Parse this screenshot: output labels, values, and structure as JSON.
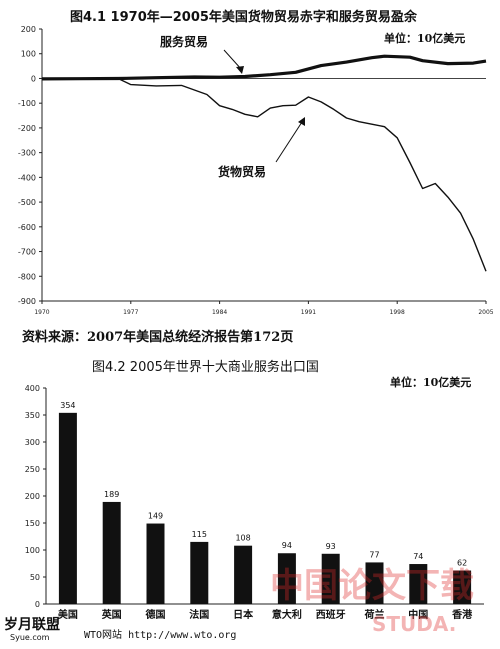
{
  "chart_data": [
    {
      "type": "line",
      "title": "图4.1  1970年—2005年美国货物贸易赤字和服务贸易盈余",
      "unit_label": "单位：10亿美元",
      "ylim": [
        -900,
        200
      ],
      "yticks": [
        200,
        100,
        0,
        -100,
        -200,
        -300,
        -400,
        -500,
        -600,
        -700,
        -800,
        -900
      ],
      "xlim": [
        1970,
        2005
      ],
      "xticks": [
        1970,
        1977,
        1984,
        1991,
        1998,
        2005
      ],
      "grid": false,
      "series": [
        {
          "name": "服务贸易",
          "x": [
            1970,
            1973,
            1976,
            1979,
            1982,
            1984,
            1986,
            1988,
            1990,
            1992,
            1994,
            1996,
            1997,
            1999,
            2000,
            2002,
            2004,
            2005
          ],
          "values": [
            -2,
            -1,
            0,
            3,
            6,
            5,
            8,
            15,
            25,
            52,
            66,
            84,
            90,
            86,
            72,
            60,
            62,
            70
          ]
        },
        {
          "name": "货物贸易",
          "x": [
            1970,
            1972,
            1974,
            1976,
            1977,
            1979,
            1981,
            1983,
            1984,
            1985,
            1986,
            1987,
            1988,
            1989,
            1990,
            1991,
            1992,
            1993,
            1994,
            1995,
            1996,
            1997,
            1998,
            1999,
            2000,
            2001,
            2002,
            2003,
            2004,
            2005
          ],
          "values": [
            -2,
            -3,
            -3,
            0,
            -25,
            -30,
            -28,
            -65,
            -110,
            -125,
            -145,
            -155,
            -120,
            -110,
            -108,
            -75,
            -95,
            -125,
            -160,
            -175,
            -185,
            -195,
            -240,
            -340,
            -445,
            -425,
            -480,
            -545,
            -650,
            -780
          ]
        }
      ],
      "annotations": [
        "服务贸易",
        "货物贸易"
      ],
      "source": "资料来源：2007年美国总统经济报告第172页"
    },
    {
      "type": "bar",
      "title": "图4.2  2005年世界十大商业服务出口国",
      "unit_label": "单位：10亿美元",
      "categories": [
        "美国",
        "英国",
        "德国",
        "法国",
        "日本",
        "意大利",
        "西班牙",
        "荷兰",
        "中国",
        "香港"
      ],
      "values": [
        354,
        189,
        149,
        115,
        108,
        94,
        93,
        77,
        74,
        62
      ],
      "data_labels": [
        "354",
        "189",
        "149",
        "115",
        "108",
        "94",
        "93",
        "77",
        "74",
        "62"
      ],
      "ylim": [
        0,
        400
      ],
      "yticks": [
        0,
        50,
        100,
        150,
        200,
        250,
        300,
        350,
        400
      ],
      "bar_color": "#111111",
      "grid": false,
      "source": "WTO网站 http://www.wto.org"
    }
  ],
  "watermarks": {
    "cn_text": "中国论文下载",
    "site": "STUDA.",
    "brand": "岁月联盟",
    "brand_url": "Syue.com"
  }
}
